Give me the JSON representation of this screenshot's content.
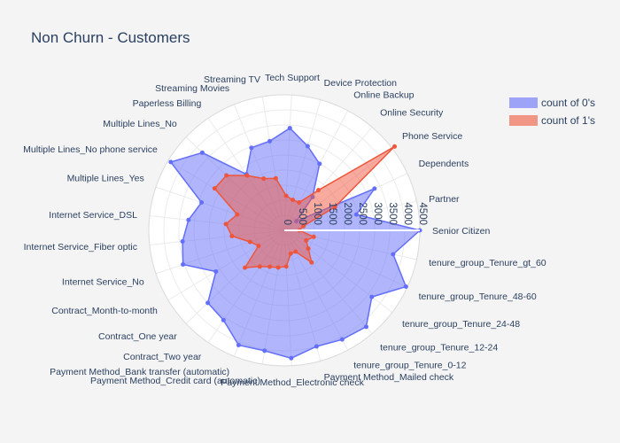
{
  "chart_data": {
    "type": "radar",
    "title": "Non Churn - Customers",
    "categories": [
      "Senior Citizen",
      "Partner",
      "Dependents",
      "Phone Service",
      "Online Security",
      "Online Backup",
      "Device Protection",
      "Tech Support",
      "Streaming TV",
      "Streaming Movies",
      "Paperless Billing",
      "Multiple Lines_No",
      "Multiple Lines_No phone service",
      "Multiple Lines_Yes",
      "Internet Service_DSL",
      "Internet Service_Fiber optic",
      "Internet Service_No",
      "Contract_Month-to-month",
      "Contract_One year",
      "Contract_Two year",
      "Payment Method_Bank transfer (automatic)",
      "Payment Method_Credit card (automatic)",
      "Payment Method_Electronic check",
      "Payment Method_Mailed check",
      "tenure_group_Tenure_0-12",
      "tenure_group_Tenure_12-24",
      "tenure_group_Tenure_24-48",
      "tenure_group_Tenure_48-60",
      "tenure_group_Tenure_gt_60"
    ],
    "radial_range": [
      0,
      4500
    ],
    "radial_ticks": [
      "0",
      "500",
      "1000",
      "1500",
      "2000",
      "2500",
      "3000",
      "3500",
      "4000",
      "4500"
    ],
    "legend_position": "top-right",
    "series": [
      {
        "name": "count of 0's",
        "color": "#636efa",
        "values": [
          4500,
          2450,
          3300,
          500,
          1450,
          2500,
          2900,
          3400,
          3000,
          2950,
          2250,
          3750,
          4400,
          2900,
          3200,
          3400,
          3550,
          2650,
          3500,
          3600,
          4100,
          4050,
          4250,
          4000,
          4100,
          4200,
          3650,
          4450,
          3700
        ]
      },
      {
        "name": "count of 1's",
        "color": "#ef553b",
        "values": [
          500,
          650,
          1850,
          4600,
          1750,
          1050,
          1050,
          1150,
          1750,
          1850,
          2200,
          2650,
          2700,
          1650,
          1950,
          1750,
          1200,
          1000,
          1800,
          1450,
          1300,
          1250,
          1200,
          800,
          800,
          1400,
          1000,
          800,
          1000
        ]
      }
    ]
  }
}
